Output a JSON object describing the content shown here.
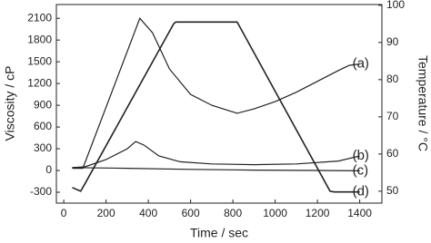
{
  "chart_data": {
    "type": "line",
    "xlabel": "Time / sec",
    "ylabel": "Viscosity / cP",
    "y2label": "Temperature  / °C",
    "xlim": [
      -35,
      1505
    ],
    "ylim": [
      -450,
      2290
    ],
    "y2lim": [
      46.8,
      100.2
    ],
    "xticks": [
      0,
      200,
      400,
      600,
      800,
      1000,
      1200,
      1400
    ],
    "yticks": [
      -300,
      0,
      300,
      600,
      900,
      1200,
      1500,
      1800,
      2100
    ],
    "y2ticks": [
      50,
      60,
      70,
      80,
      90,
      100
    ],
    "series": [
      {
        "name": "(a)",
        "color": "#222222",
        "x": [
          40,
          90,
          360,
          420,
          500,
          600,
          700,
          820,
          900,
          1000,
          1100,
          1200,
          1300,
          1350,
          1400
        ],
        "values": [
          30,
          30,
          2100,
          1900,
          1400,
          1050,
          900,
          790,
          850,
          950,
          1080,
          1230,
          1380,
          1450,
          1470
        ]
      },
      {
        "name": "(b)",
        "color": "#222222",
        "x": [
          40,
          100,
          200,
          300,
          340,
          380,
          450,
          550,
          700,
          900,
          1100,
          1300,
          1400
        ],
        "values": [
          40,
          50,
          150,
          300,
          400,
          350,
          200,
          120,
          90,
          80,
          90,
          130,
          200
        ]
      },
      {
        "name": "(c)",
        "color": "#222222",
        "x": [
          40,
          300,
          600,
          900,
          1200,
          1400
        ],
        "values": [
          40,
          30,
          15,
          5,
          0,
          -5
        ]
      },
      {
        "name": "(d)",
        "color": "#222222",
        "axis": "y2",
        "x": [
          40,
          80,
          100,
          520,
          530,
          820,
          1260,
          1280,
          1400
        ],
        "values": [
          51,
          50,
          52,
          95,
          95.5,
          95.5,
          50,
          49.8,
          49.8
        ]
      }
    ]
  }
}
